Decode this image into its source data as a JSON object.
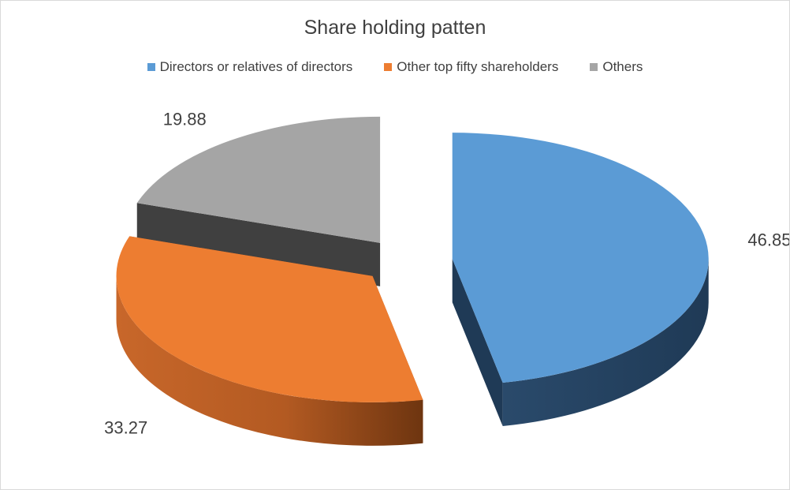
{
  "chart_data": {
    "type": "pie",
    "title": "Share holding patten",
    "legend_position": "top",
    "categories": [
      "Directors or relatives of directors",
      "Other top fifty shareholders",
      "Others"
    ],
    "values": [
      46.85,
      33.27,
      19.88
    ],
    "labels": [
      "46.85",
      "33.27",
      "19.88"
    ],
    "colors": [
      "#5B9BD5",
      "#ED7D31",
      "#A5A5A5"
    ],
    "style": "3d-exploded"
  }
}
